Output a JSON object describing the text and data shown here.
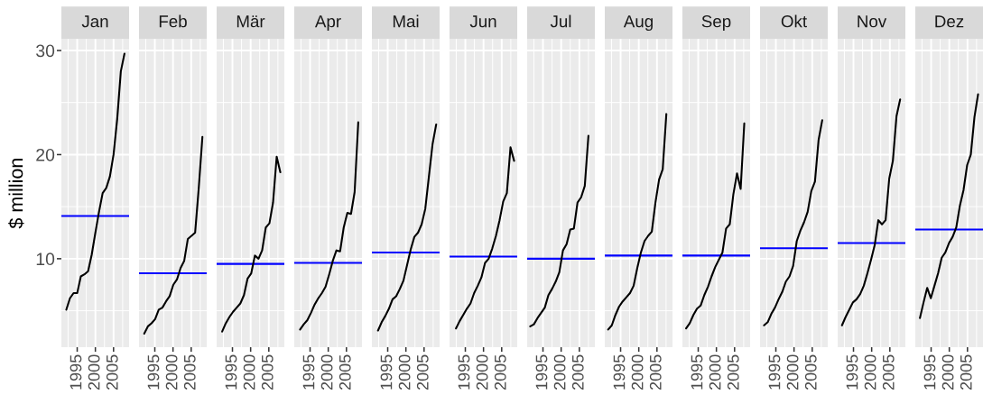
{
  "chart_data": [
    {
      "type": "line",
      "title": "Jan",
      "ylabel": "$ million",
      "xlim": [
        1990.65,
        2009.27
      ],
      "xticks": [
        1995,
        2000,
        2005
      ],
      "ylim": [
        1.5,
        31.1
      ],
      "yticks": [
        10,
        20,
        30
      ],
      "grid": true,
      "series": [
        {
          "color": "#000000",
          "x": [
            1992,
            1993,
            1994,
            1995,
            1996,
            1997,
            1998,
            1999,
            2000,
            2001,
            2002,
            2003,
            2004,
            2005,
            2006,
            2007,
            2008
          ],
          "values": [
            5.1,
            6.2,
            6.7,
            6.7,
            8.3,
            8.5,
            8.8,
            10.4,
            12.5,
            14.5,
            16.3,
            16.8,
            17.9,
            20.0,
            23.4,
            28.0,
            29.7
          ]
        }
      ],
      "ref_lines": [
        {
          "axis": "y",
          "value": 14.1,
          "color": "#0000ff"
        }
      ]
    },
    {
      "type": "line",
      "title": "Feb",
      "xlim": [
        1990.65,
        2009.27
      ],
      "xticks": [
        1995,
        2000,
        2005
      ],
      "ylim": [
        1.5,
        31.1
      ],
      "yticks": [
        10,
        20,
        30
      ],
      "grid": true,
      "tick_labels": "x",
      "series": [
        {
          "color": "#000000",
          "x": [
            1992.083,
            1993.083,
            1994.083,
            1995.083,
            1996.083,
            1997.083,
            1998.083,
            1999.083,
            2000.083,
            2001.083,
            2002.083,
            2003.083,
            2004.083,
            2005.083,
            2006.083,
            2007.083,
            2008.083
          ],
          "values": [
            2.8,
            3.5,
            3.8,
            4.2,
            5.1,
            5.3,
            5.9,
            6.4,
            7.5,
            8.0,
            9.1,
            9.8,
            11.9,
            12.2,
            12.5,
            16.8,
            21.7
          ]
        }
      ],
      "ref_lines": [
        {
          "axis": "y",
          "value": 8.6,
          "color": "#0000ff"
        }
      ]
    },
    {
      "type": "line",
      "title": "Mär",
      "xlim": [
        1990.65,
        2009.27
      ],
      "xticks": [
        1995,
        2000,
        2005
      ],
      "ylim": [
        1.5,
        31.1
      ],
      "yticks": [
        10,
        20,
        30
      ],
      "grid": true,
      "tick_labels": "x",
      "series": [
        {
          "color": "#000000",
          "x": [
            1992.167,
            1993.167,
            1994.167,
            1995.167,
            1996.167,
            1997.167,
            1998.167,
            1999.167,
            2000.167,
            2001.167,
            2002.167,
            2003.167,
            2004.167,
            2005.167,
            2006.167,
            2007.167,
            2008.167
          ],
          "values": [
            3.0,
            3.8,
            4.4,
            4.9,
            5.3,
            5.7,
            6.5,
            8.1,
            8.6,
            10.3,
            10.0,
            10.8,
            13.0,
            13.4,
            15.4,
            19.8,
            18.3
          ]
        }
      ],
      "ref_lines": [
        {
          "axis": "y",
          "value": 9.5,
          "color": "#0000ff"
        }
      ]
    },
    {
      "type": "line",
      "title": "Apr",
      "xlim": [
        1990.65,
        2009.27
      ],
      "xticks": [
        1995,
        2000,
        2005
      ],
      "ylim": [
        1.5,
        31.1
      ],
      "yticks": [
        10,
        20,
        30
      ],
      "grid": true,
      "tick_labels": "x",
      "series": [
        {
          "color": "#000000",
          "x": [
            1992.25,
            1993.25,
            1994.25,
            1995.25,
            1996.25,
            1997.25,
            1998.25,
            1999.25,
            2000.25,
            2001.25,
            2002.25,
            2003.25,
            2004.25,
            2005.25,
            2006.25,
            2007.25,
            2008.25
          ],
          "values": [
            3.2,
            3.7,
            4.1,
            4.8,
            5.6,
            6.2,
            6.7,
            7.3,
            8.5,
            9.8,
            10.8,
            10.7,
            13.0,
            14.4,
            14.3,
            16.4,
            23.1
          ]
        }
      ],
      "ref_lines": [
        {
          "axis": "y",
          "value": 9.6,
          "color": "#0000ff"
        }
      ]
    },
    {
      "type": "line",
      "title": "Mai",
      "xlim": [
        1990.65,
        2009.27
      ],
      "xticks": [
        1995,
        2000,
        2005
      ],
      "ylim": [
        1.5,
        31.1
      ],
      "yticks": [
        10,
        20,
        30
      ],
      "grid": true,
      "tick_labels": "x",
      "series": [
        {
          "color": "#000000",
          "x": [
            1992.333,
            1993.333,
            1994.333,
            1995.333,
            1996.333,
            1997.333,
            1998.333,
            1999.333,
            2000.333,
            2001.333,
            2002.333,
            2003.333,
            2004.333,
            2005.333,
            2006.333,
            2007.333,
            2008.333
          ],
          "values": [
            3.1,
            3.9,
            4.5,
            5.2,
            6.1,
            6.4,
            7.1,
            7.9,
            9.4,
            10.9,
            12.1,
            12.5,
            13.3,
            14.8,
            17.9,
            21.0,
            22.9
          ]
        }
      ],
      "ref_lines": [
        {
          "axis": "y",
          "value": 10.6,
          "color": "#0000ff"
        }
      ]
    },
    {
      "type": "line",
      "title": "Jun",
      "xlim": [
        1990.65,
        2009.27
      ],
      "xticks": [
        1995,
        2000,
        2005
      ],
      "ylim": [
        1.5,
        31.1
      ],
      "yticks": [
        10,
        20,
        30
      ],
      "grid": true,
      "tick_labels": "x",
      "series": [
        {
          "color": "#000000",
          "x": [
            1992.417,
            1993.417,
            1994.417,
            1995.417,
            1996.417,
            1997.417,
            1998.417,
            1999.417,
            2000.417,
            2001.417,
            2002.417,
            2003.417,
            2004.417,
            2005.417,
            2006.417,
            2007.417,
            2008.417
          ],
          "values": [
            3.3,
            4.0,
            4.6,
            5.2,
            5.7,
            6.7,
            7.4,
            8.2,
            9.6,
            10.0,
            11.0,
            12.2,
            13.7,
            15.5,
            16.3,
            20.7,
            19.4
          ]
        }
      ],
      "ref_lines": [
        {
          "axis": "y",
          "value": 10.2,
          "color": "#0000ff"
        }
      ]
    },
    {
      "type": "line",
      "title": "Jul",
      "xlim": [
        1990.65,
        2009.27
      ],
      "xticks": [
        1995,
        2000,
        2005
      ],
      "ylim": [
        1.5,
        31.1
      ],
      "yticks": [
        10,
        20,
        30
      ],
      "grid": true,
      "tick_labels": "x",
      "series": [
        {
          "color": "#000000",
          "x": [
            1991.5,
            1992.5,
            1993.5,
            1994.5,
            1995.5,
            1996.5,
            1997.5,
            1998.5,
            1999.5,
            2000.5,
            2001.5,
            2002.5,
            2003.5,
            2004.5,
            2005.5,
            2006.5,
            2007.5
          ],
          "values": [
            3.5,
            3.7,
            4.3,
            4.8,
            5.3,
            6.5,
            7.1,
            7.8,
            8.7,
            10.8,
            11.4,
            12.8,
            12.9,
            15.4,
            15.9,
            17.0,
            21.8
          ]
        }
      ],
      "ref_lines": [
        {
          "axis": "y",
          "value": 10.0,
          "color": "#0000ff"
        }
      ]
    },
    {
      "type": "line",
      "title": "Aug",
      "xlim": [
        1990.65,
        2009.27
      ],
      "xticks": [
        1995,
        2000,
        2005
      ],
      "ylim": [
        1.5,
        31.1
      ],
      "yticks": [
        10,
        20,
        30
      ],
      "grid": true,
      "tick_labels": "x",
      "series": [
        {
          "color": "#000000",
          "x": [
            1991.583,
            1992.583,
            1993.583,
            1994.583,
            1995.583,
            1996.583,
            1997.583,
            1998.583,
            1999.583,
            2000.583,
            2001.583,
            2002.583,
            2003.583,
            2004.583,
            2005.583,
            2006.583,
            2007.583
          ],
          "values": [
            3.2,
            3.6,
            4.6,
            5.4,
            5.9,
            6.3,
            6.7,
            7.4,
            9.1,
            10.6,
            11.7,
            12.2,
            12.6,
            15.4,
            17.6,
            18.6,
            23.9
          ]
        }
      ],
      "ref_lines": [
        {
          "axis": "y",
          "value": 10.3,
          "color": "#0000ff"
        }
      ]
    },
    {
      "type": "line",
      "title": "Sep",
      "xlim": [
        1990.65,
        2009.27
      ],
      "xticks": [
        1995,
        2000,
        2005
      ],
      "ylim": [
        1.5,
        31.1
      ],
      "yticks": [
        10,
        20,
        30
      ],
      "grid": true,
      "tick_labels": "x",
      "series": [
        {
          "color": "#000000",
          "x": [
            1991.667,
            1992.667,
            1993.667,
            1994.667,
            1995.667,
            1996.667,
            1997.667,
            1998.667,
            1999.667,
            2000.667,
            2001.667,
            2002.667,
            2003.667,
            2004.667,
            2005.667,
            2006.667,
            2007.667
          ],
          "values": [
            3.3,
            3.8,
            4.6,
            5.2,
            5.5,
            6.5,
            7.3,
            8.3,
            9.2,
            9.9,
            10.6,
            12.9,
            13.3,
            16.2,
            18.2,
            16.7,
            23.0
          ]
        }
      ],
      "ref_lines": [
        {
          "axis": "y",
          "value": 10.3,
          "color": "#0000ff"
        }
      ]
    },
    {
      "type": "line",
      "title": "Okt",
      "xlim": [
        1990.65,
        2009.27
      ],
      "xticks": [
        1995,
        2000,
        2005
      ],
      "ylim": [
        1.5,
        31.1
      ],
      "yticks": [
        10,
        20,
        30
      ],
      "grid": true,
      "tick_labels": "x",
      "series": [
        {
          "color": "#000000",
          "x": [
            1991.75,
            1992.75,
            1993.75,
            1994.75,
            1995.75,
            1996.75,
            1997.75,
            1998.75,
            1999.75,
            2000.75,
            2001.75,
            2002.75,
            2003.75,
            2004.75,
            2005.75,
            2006.75,
            2007.75
          ],
          "values": [
            3.6,
            3.9,
            4.7,
            5.3,
            6.1,
            6.8,
            7.8,
            8.3,
            9.3,
            11.7,
            12.7,
            13.5,
            14.5,
            16.5,
            17.4,
            21.4,
            23.3
          ]
        }
      ],
      "ref_lines": [
        {
          "axis": "y",
          "value": 11.0,
          "color": "#0000ff"
        }
      ]
    },
    {
      "type": "line",
      "title": "Nov",
      "xlim": [
        1990.65,
        2009.27
      ],
      "xticks": [
        1995,
        2000,
        2005
      ],
      "ylim": [
        1.5,
        31.1
      ],
      "yticks": [
        10,
        20,
        30
      ],
      "grid": true,
      "tick_labels": "x",
      "series": [
        {
          "color": "#000000",
          "x": [
            1991.833,
            1992.833,
            1993.833,
            1994.833,
            1995.833,
            1996.833,
            1997.833,
            1998.833,
            1999.833,
            2000.833,
            2001.833,
            2002.833,
            2003.833,
            2004.833,
            2005.833,
            2006.833,
            2007.833
          ],
          "values": [
            3.6,
            4.4,
            5.1,
            5.8,
            6.1,
            6.6,
            7.4,
            8.6,
            9.9,
            11.3,
            13.7,
            13.3,
            13.7,
            17.7,
            19.4,
            23.7,
            25.3
          ]
        }
      ],
      "ref_lines": [
        {
          "axis": "y",
          "value": 11.5,
          "color": "#0000ff"
        }
      ]
    },
    {
      "type": "line",
      "title": "Dez",
      "xlim": [
        1990.65,
        2009.27
      ],
      "xticks": [
        1995,
        2000,
        2005
      ],
      "ylim": [
        1.5,
        31.1
      ],
      "yticks": [
        10,
        20,
        30
      ],
      "grid": true,
      "tick_labels": "x",
      "series": [
        {
          "color": "#000000",
          "x": [
            1991.917,
            1992.917,
            1993.917,
            1994.917,
            1995.917,
            1996.917,
            1997.917,
            1998.917,
            1999.917,
            2000.917,
            2001.917,
            2002.917,
            2003.917,
            2004.917,
            2005.917,
            2006.917,
            2007.917
          ],
          "values": [
            4.3,
            5.8,
            7.2,
            6.2,
            7.4,
            8.6,
            10.1,
            10.6,
            11.5,
            12.1,
            13.0,
            15.1,
            16.6,
            19.0,
            20.0,
            23.6,
            25.8
          ]
        }
      ],
      "ref_lines": [
        {
          "axis": "y",
          "value": 12.8,
          "color": "#0000ff"
        }
      ]
    }
  ]
}
